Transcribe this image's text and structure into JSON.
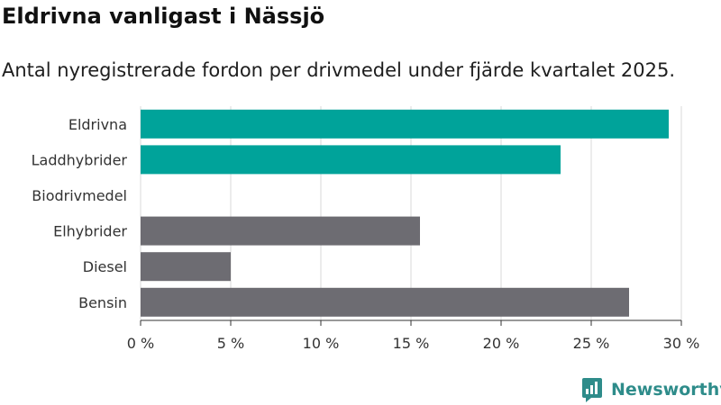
{
  "title": "Eldrivna vanligast i Nässjö",
  "subtitle": "Antal nyregistrerade fordon per drivmedel under fjärde kvartalet 2025.",
  "brand": "Newsworthy",
  "chart_data": {
    "type": "bar",
    "orientation": "horizontal",
    "categories": [
      "Eldrivna",
      "Laddhybrider",
      "Biodrivmedel",
      "Elhybrider",
      "Diesel",
      "Bensin"
    ],
    "values": [
      29.3,
      23.3,
      0,
      15.5,
      5.0,
      27.1
    ],
    "colors": [
      "#00a39a",
      "#00a39a",
      "#00a39a",
      "#6d6c72",
      "#6d6c72",
      "#6d6c72"
    ],
    "xticks": [
      0,
      5,
      10,
      15,
      20,
      25,
      30
    ],
    "xtick_labels": [
      "0 %",
      "5 %",
      "10 %",
      "15 %",
      "20 %",
      "25 %",
      "30 %"
    ],
    "xlim": [
      0,
      30
    ],
    "grid": true,
    "xlabel": "",
    "ylabel": ""
  }
}
